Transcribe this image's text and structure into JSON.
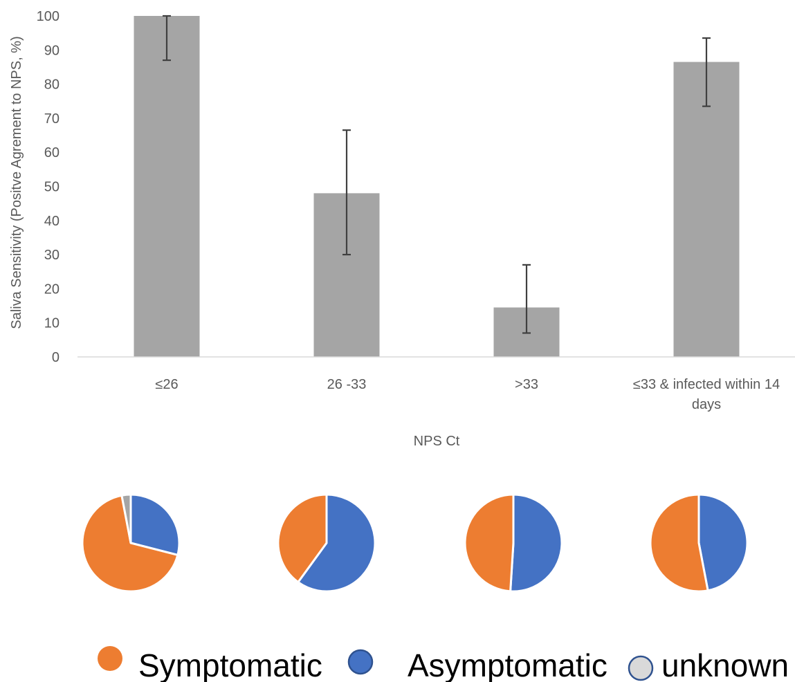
{
  "chart_data": [
    {
      "type": "bar",
      "title": "",
      "xlabel": "NPS Ct",
      "ylabel": "Saliva Sensitivity (Positve Agrement to NPS, %)",
      "ylim": [
        0,
        100
      ],
      "yticks": [
        0,
        10,
        20,
        30,
        40,
        50,
        60,
        70,
        80,
        90,
        100
      ],
      "grid": false,
      "categories": [
        "≤26",
        "26 -33",
        ">33",
        "≤33 & infected within 14 days"
      ],
      "values": [
        100,
        48,
        14.5,
        86.5
      ],
      "error_low": [
        87,
        30,
        7,
        73.5
      ],
      "error_high": [
        100,
        66.5,
        27,
        93.5
      ],
      "bar_color": "#a5a5a5",
      "error_color": "#404040"
    },
    {
      "type": "pie",
      "pies": [
        {
          "category": "≤26",
          "slices": [
            {
              "label": "Symptomatic",
              "value": 68
            },
            {
              "label": "Asymptomatic",
              "value": 29
            },
            {
              "label": "unknown",
              "value": 3
            }
          ]
        },
        {
          "category": "26 -33",
          "slices": [
            {
              "label": "Symptomatic",
              "value": 40
            },
            {
              "label": "Asymptomatic",
              "value": 60
            }
          ]
        },
        {
          "category": ">33",
          "slices": [
            {
              "label": "Symptomatic",
              "value": 49
            },
            {
              "label": "Asymptomatic",
              "value": 51
            }
          ]
        },
        {
          "category": "≤33 & infected within 14 days",
          "slices": [
            {
              "label": "Symptomatic",
              "value": 53
            },
            {
              "label": "Asymptomatic",
              "value": 47
            }
          ]
        }
      ],
      "colors": {
        "Symptomatic": "#ed7d31",
        "Asymptomatic": "#4472c4",
        "unknown": "#a5a5a5"
      },
      "start_angle": "12 o'clock, asymptomatic clockwise"
    }
  ],
  "legend": {
    "placement": "bottom",
    "items": [
      {
        "label": "Symptomatic",
        "color": "#ed7d31"
      },
      {
        "label": "Asymptomatic",
        "color": "#4472c4"
      },
      {
        "label": "unknown",
        "color": "#d9d9d9"
      }
    ]
  }
}
